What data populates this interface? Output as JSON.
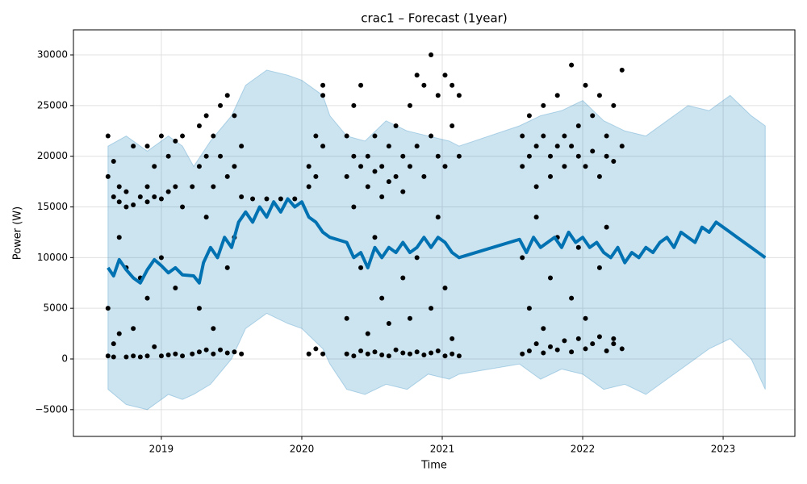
{
  "chart_data": {
    "type": "forecast",
    "title": "crac1 – Forecast (1year)",
    "x_label": "Time",
    "y_label": "Power (W)",
    "xlim": [
      2018.374,
      2023.511
    ],
    "ylim": [
      -7640,
      32470
    ],
    "xticks": [
      2019,
      2020,
      2021,
      2022,
      2023
    ],
    "yticks": [
      {
        "value": -5000,
        "label": "−5000"
      },
      0,
      5000,
      10000,
      15000,
      20000,
      25000,
      30000
    ],
    "grid": true,
    "series": [
      {
        "type": "scatter",
        "color": "#000000",
        "x": [
          2018.62,
          2018.62,
          2018.62,
          2018.62,
          2018.66,
          2018.66,
          2018.66,
          2018.66,
          2018.7,
          2018.7,
          2018.7,
          2018.7,
          2018.75,
          2018.75,
          2018.75,
          2018.75,
          2018.8,
          2018.8,
          2018.8,
          2018.8,
          2018.85,
          2018.85,
          2018.85,
          2018.9,
          2018.9,
          2018.9,
          2018.9,
          2018.9,
          2018.95,
          2018.95,
          2018.95,
          2019.0,
          2019.0,
          2019.0,
          2019.0,
          2019.05,
          2019.05,
          2019.05,
          2019.1,
          2019.1,
          2019.1,
          2019.1,
          2019.15,
          2019.15,
          2019.15,
          2019.22,
          2019.22,
          2019.27,
          2019.27,
          2019.27,
          2019.27,
          2019.32,
          2019.32,
          2019.32,
          2019.32,
          2019.37,
          2019.37,
          2019.37,
          2019.37,
          2019.42,
          2019.42,
          2019.42,
          2019.47,
          2019.47,
          2019.47,
          2019.47,
          2019.52,
          2019.52,
          2019.52,
          2019.52,
          2019.57,
          2019.57,
          2019.57,
          2019.65,
          2019.75,
          2019.85,
          2019.95,
          2020.05,
          2020.05,
          2020.05,
          2020.1,
          2020.1,
          2020.1,
          2020.15,
          2020.15,
          2020.15,
          2020.15,
          2020.32,
          2020.32,
          2020.32,
          2020.32,
          2020.37,
          2020.37,
          2020.37,
          2020.37,
          2020.42,
          2020.42,
          2020.42,
          2020.42,
          2020.47,
          2020.47,
          2020.47,
          2020.47,
          2020.52,
          2020.52,
          2020.52,
          2020.52,
          2020.57,
          2020.57,
          2020.57,
          2020.57,
          2020.62,
          2020.62,
          2020.62,
          2020.62,
          2020.67,
          2020.67,
          2020.67,
          2020.72,
          2020.72,
          2020.72,
          2020.72,
          2020.77,
          2020.77,
          2020.77,
          2020.77,
          2020.82,
          2020.82,
          2020.82,
          2020.82,
          2020.87,
          2020.87,
          2020.87,
          2020.92,
          2020.92,
          2020.92,
          2020.92,
          2020.97,
          2020.97,
          2020.97,
          2020.97,
          2021.02,
          2021.02,
          2021.02,
          2021.02,
          2021.07,
          2021.07,
          2021.07,
          2021.07,
          2021.12,
          2021.12,
          2021.12,
          2021.57,
          2021.57,
          2021.57,
          2021.57,
          2021.62,
          2021.62,
          2021.62,
          2021.62,
          2021.67,
          2021.67,
          2021.67,
          2021.67,
          2021.72,
          2021.72,
          2021.72,
          2021.72,
          2021.77,
          2021.77,
          2021.77,
          2021.77,
          2021.82,
          2021.82,
          2021.82,
          2021.82,
          2021.87,
          2021.87,
          2021.87,
          2021.92,
          2021.92,
          2021.92,
          2021.92,
          2021.97,
          2021.97,
          2021.97,
          2021.97,
          2022.02,
          2022.02,
          2022.02,
          2022.02,
          2022.07,
          2022.07,
          2022.07,
          2022.12,
          2022.12,
          2022.12,
          2022.12,
          2022.17,
          2022.17,
          2022.17,
          2022.17,
          2022.22,
          2022.22,
          2022.22,
          2022.22,
          2022.28,
          2022.28,
          2022.28
        ],
        "values": [
          22000,
          18000,
          300,
          5000,
          16000,
          19500,
          1500,
          200,
          15500,
          17000,
          2500,
          12000,
          16500,
          200,
          9000,
          15000,
          15200,
          21000,
          300,
          3000,
          16000,
          200,
          8000,
          17000,
          15500,
          300,
          6000,
          21000,
          16000,
          19000,
          1200,
          15800,
          22000,
          300,
          10000,
          16500,
          20000,
          400,
          17000,
          21500,
          500,
          7000,
          15000,
          22000,
          300,
          17000,
          500,
          19000,
          23000,
          700,
          5000,
          20000,
          24000,
          900,
          14000,
          22000,
          17000,
          500,
          3000,
          25000,
          20000,
          900,
          26000,
          18000,
          600,
          9000,
          24000,
          19000,
          700,
          12000,
          21000,
          16000,
          500,
          15800,
          15800,
          15800,
          15800,
          19000,
          17000,
          500,
          22000,
          18000,
          1000,
          26000,
          27000,
          500,
          21000,
          22000,
          18000,
          500,
          4000,
          25000,
          20000,
          300,
          15000,
          27000,
          19000,
          800,
          9000,
          20000,
          17000,
          500,
          2500,
          22000,
          18500,
          700,
          12000,
          19000,
          16000,
          400,
          6000,
          21000,
          17500,
          300,
          3500,
          18000,
          23000,
          900,
          20000,
          16500,
          600,
          8000,
          25000,
          19000,
          500,
          4000,
          28000,
          21000,
          700,
          10000,
          27000,
          18000,
          400,
          30000,
          22000,
          600,
          5000,
          26000,
          20000,
          800,
          14000,
          28000,
          19000,
          300,
          7000,
          27000,
          23000,
          500,
          2000,
          26000,
          20000,
          300,
          22000,
          19000,
          500,
          10000,
          24000,
          20000,
          800,
          5000,
          21000,
          17000,
          1500,
          14000,
          25000,
          22000,
          600,
          3000,
          20000,
          18000,
          1200,
          8000,
          26000,
          21000,
          900,
          12000,
          22000,
          19000,
          1800,
          29000,
          21000,
          700,
          6000,
          23000,
          20000,
          2000,
          11000,
          27000,
          19000,
          1000,
          4000,
          24000,
          20500,
          1500,
          26000,
          18000,
          2200,
          9000,
          22000,
          20000,
          800,
          13000,
          25000,
          19500,
          1500,
          2000,
          28500,
          21000,
          1000
        ]
      },
      {
        "type": "band",
        "color": "#0072B2",
        "x": [
          2018.62,
          2018.75,
          2018.9,
          2019.05,
          2019.15,
          2019.23,
          2019.35,
          2019.5,
          2019.6,
          2019.75,
          2019.9,
          2020.0,
          2020.15,
          2020.2,
          2020.32,
          2020.45,
          2020.6,
          2020.75,
          2020.9,
          2021.05,
          2021.12,
          2021.55,
          2021.7,
          2021.85,
          2022.0,
          2022.15,
          2022.3,
          2022.45,
          2022.6,
          2022.75,
          2022.9,
          2023.05,
          2023.2,
          2023.3
        ],
        "upper": [
          21000,
          22000,
          20500,
          22000,
          21000,
          19000,
          21500,
          24000,
          27000,
          28500,
          28000,
          27500,
          26000,
          24000,
          22000,
          21500,
          23500,
          22500,
          22000,
          21500,
          21000,
          23000,
          24000,
          24500,
          25500,
          23500,
          22500,
          22000,
          23500,
          25000,
          24500,
          26000,
          24000,
          23000
        ],
        "lower": [
          -3000,
          -4500,
          -5000,
          -3500,
          -4000,
          -3500,
          -2500,
          0,
          3000,
          4500,
          3500,
          3000,
          1000,
          -500,
          -3000,
          -3500,
          -2500,
          -3000,
          -1500,
          -2000,
          -1500,
          -500,
          -2000,
          -1000,
          -1500,
          -3000,
          -2500,
          -3500,
          -2000,
          -500,
          1000,
          2000,
          0,
          -3000
        ]
      },
      {
        "type": "line",
        "color": "#0072B2",
        "x": [
          2018.62,
          2018.66,
          2018.7,
          2018.75,
          2018.8,
          2018.85,
          2018.9,
          2018.95,
          2019.0,
          2019.05,
          2019.1,
          2019.15,
          2019.23,
          2019.27,
          2019.3,
          2019.35,
          2019.4,
          2019.45,
          2019.5,
          2019.55,
          2019.6,
          2019.65,
          2019.7,
          2019.75,
          2019.8,
          2019.85,
          2019.9,
          2019.95,
          2020.0,
          2020.05,
          2020.1,
          2020.15,
          2020.2,
          2020.32,
          2020.37,
          2020.42,
          2020.47,
          2020.52,
          2020.57,
          2020.62,
          2020.67,
          2020.72,
          2020.77,
          2020.82,
          2020.87,
          2020.92,
          2020.97,
          2021.02,
          2021.07,
          2021.12,
          2021.55,
          2021.6,
          2021.65,
          2021.7,
          2021.75,
          2021.8,
          2021.85,
          2021.9,
          2021.95,
          2022.0,
          2022.05,
          2022.1,
          2022.15,
          2022.2,
          2022.25,
          2022.3,
          2022.35,
          2022.4,
          2022.45,
          2022.5,
          2022.55,
          2022.6,
          2022.65,
          2022.7,
          2022.75,
          2022.8,
          2022.85,
          2022.9,
          2022.95,
          2023.0,
          2023.05,
          2023.1,
          2023.15,
          2023.2,
          2023.25,
          2023.3
        ],
        "values": [
          9000,
          8200,
          9800,
          8800,
          8000,
          7500,
          8800,
          9800,
          9200,
          8500,
          9000,
          8300,
          8200,
          7500,
          9500,
          11000,
          10000,
          12000,
          11000,
          13500,
          14500,
          13500,
          15000,
          14000,
          15500,
          14500,
          15800,
          15000,
          15500,
          14000,
          13500,
          12500,
          12000,
          11500,
          10000,
          10500,
          9000,
          11000,
          10000,
          11000,
          10500,
          11500,
          10500,
          11000,
          12000,
          11000,
          12000,
          11500,
          10500,
          10000,
          11800,
          10500,
          12000,
          11000,
          11500,
          12000,
          11000,
          12500,
          11500,
          12000,
          11000,
          11500,
          10500,
          10000,
          11000,
          9500,
          10500,
          10000,
          11000,
          10500,
          11500,
          12000,
          11000,
          12500,
          12000,
          11500,
          13000,
          12500,
          13500,
          13000,
          12500,
          12000,
          11500,
          11000,
          10500,
          10000
        ]
      }
    ]
  }
}
